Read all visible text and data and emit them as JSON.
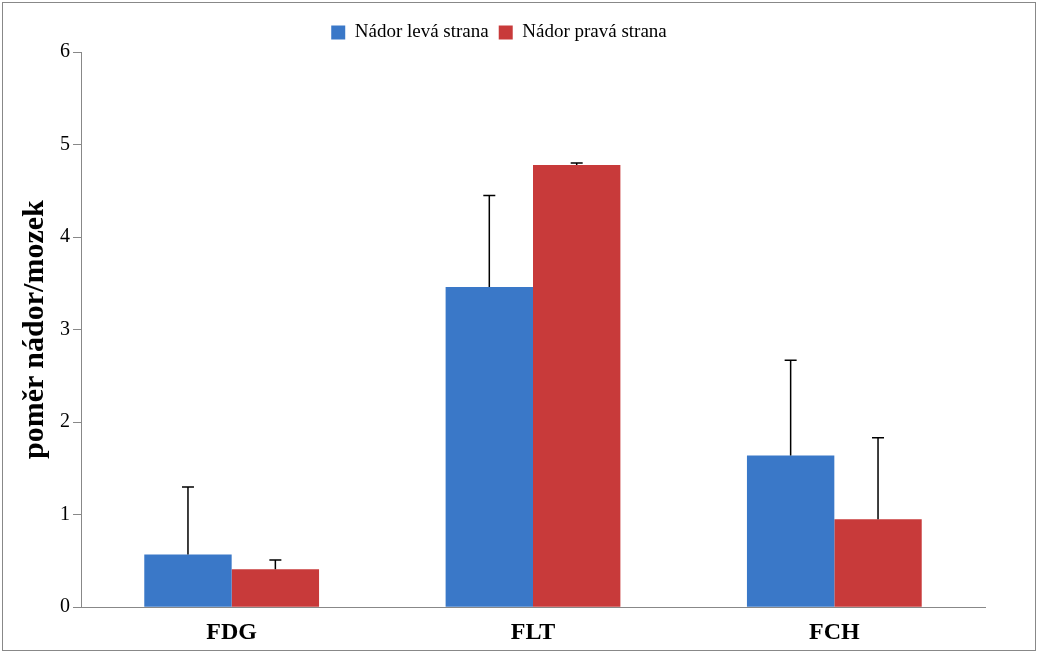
{
  "chart_data": {
    "type": "bar",
    "ylabel": "poměr nádor/mozek",
    "categories": [
      "FDG",
      "FLT",
      "FCH"
    ],
    "series": [
      {
        "name": "Nádor levá strana",
        "color": "#3a78c8",
        "values": [
          0.57,
          3.46,
          1.64
        ],
        "errors": [
          [
            0.57,
            1.3
          ],
          [
            3.46,
            4.45
          ],
          [
            1.64,
            2.67
          ]
        ]
      },
      {
        "name": "Nádor pravá strana",
        "color": "#c83a3a",
        "values": [
          0.41,
          4.78,
          0.95
        ],
        "errors": [
          [
            0.41,
            0.51
          ],
          [
            4.78,
            4.8
          ],
          [
            0.95,
            1.83
          ]
        ]
      }
    ],
    "ylim": [
      0,
      6
    ],
    "yticks": [
      0,
      1,
      2,
      3,
      4,
      5,
      6
    ],
    "grid": false,
    "legend": "top"
  }
}
